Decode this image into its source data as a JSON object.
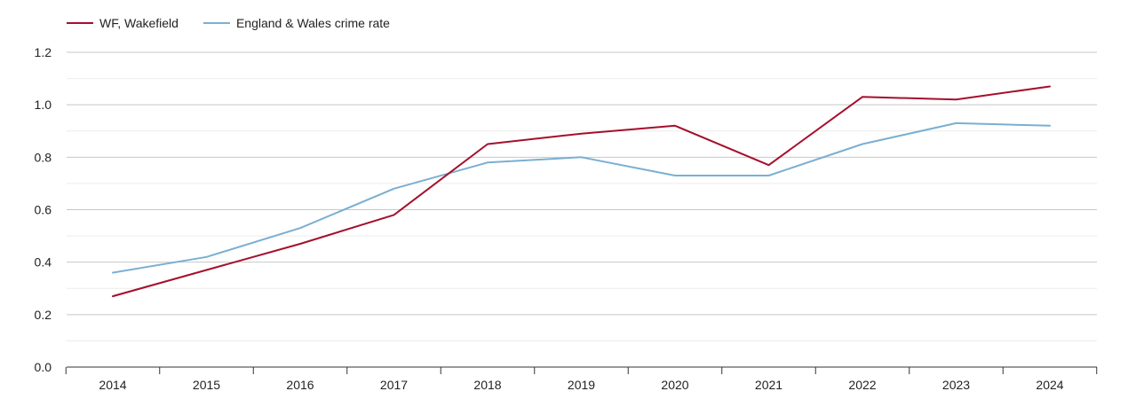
{
  "chart_data": {
    "type": "line",
    "title": "",
    "xlabel": "",
    "ylabel": "",
    "categories": [
      "2014",
      "2015",
      "2016",
      "2017",
      "2018",
      "2019",
      "2020",
      "2021",
      "2022",
      "2023",
      "2024"
    ],
    "ylim": [
      0,
      1.2
    ],
    "yticks": [
      "0.0",
      "0.2",
      "0.4",
      "0.6",
      "0.8",
      "1.0",
      "1.2"
    ],
    "grid": true,
    "legend_position": "top-left",
    "series": [
      {
        "name": "WF, Wakefield",
        "color": "#a50f2d",
        "values": [
          0.27,
          0.37,
          0.47,
          0.58,
          0.85,
          0.89,
          0.92,
          0.77,
          1.03,
          1.02,
          1.07
        ]
      },
      {
        "name": "England & Wales crime rate",
        "color": "#7aafd2",
        "values": [
          0.36,
          0.42,
          0.53,
          0.68,
          0.78,
          0.8,
          0.73,
          0.73,
          0.85,
          0.93,
          0.92
        ]
      }
    ]
  }
}
